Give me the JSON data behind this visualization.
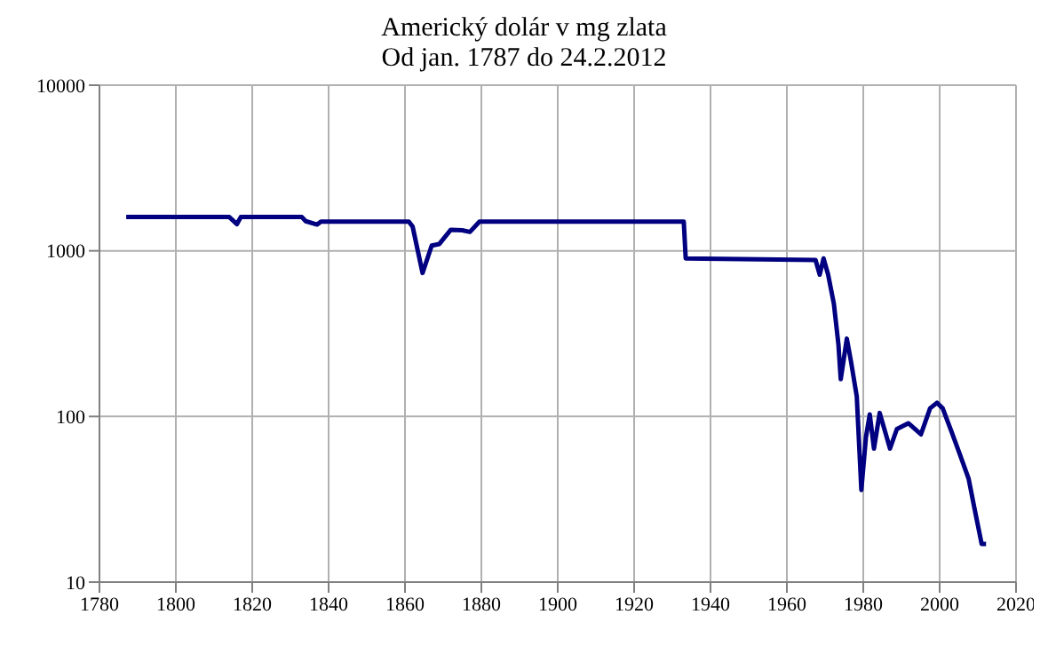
{
  "chart_data": {
    "type": "line",
    "title": "Americký dolár v mg zlata",
    "subtitle": "Od jan. 1787 do 24.2.2012",
    "x": [
      1787,
      1814,
      1816,
      1817,
      1833,
      1834,
      1837,
      1838,
      1861,
      1862,
      1864.6,
      1867,
      1869,
      1872,
      1875,
      1877,
      1879.5,
      1933,
      1933.5,
      1967.5,
      1968.6,
      1969.6,
      1970.8,
      1972.3,
      1973.5,
      1974.1,
      1975.7,
      1976.8,
      1978.3,
      1979.5,
      1980.7,
      1981.7,
      1982.8,
      1984.3,
      1987,
      1988.8,
      1991.8,
      1995.1,
      1997.5,
      1999.3,
      2000.8,
      2003.1,
      2005.3,
      2007.6,
      2009.1,
      2011,
      2012.15
    ],
    "series": [
      {
        "color": "#000080",
        "values": [
          1600,
          1600,
          1450,
          1600,
          1600,
          1510,
          1440,
          1500,
          1500,
          1400,
          735,
          1075,
          1100,
          1340,
          1330,
          1300,
          1500,
          1500,
          900,
          880,
          718,
          900,
          718,
          480,
          272,
          168,
          295,
          214,
          132,
          36,
          75,
          103,
          64,
          105,
          64,
          84,
          91,
          78,
          112,
          121,
          112,
          81,
          59,
          42,
          28,
          17,
          17
        ]
      }
    ],
    "xlim": [
      1780,
      2020
    ],
    "xticks": [
      1780,
      1800,
      1820,
      1840,
      1860,
      1880,
      1900,
      1920,
      1940,
      1960,
      1980,
      2000,
      2020
    ],
    "ylim": [
      10,
      10000
    ],
    "yticks": [
      10,
      100,
      1000,
      10000
    ],
    "log": "y",
    "grid": true,
    "marker": "none",
    "line_style": "solid"
  }
}
